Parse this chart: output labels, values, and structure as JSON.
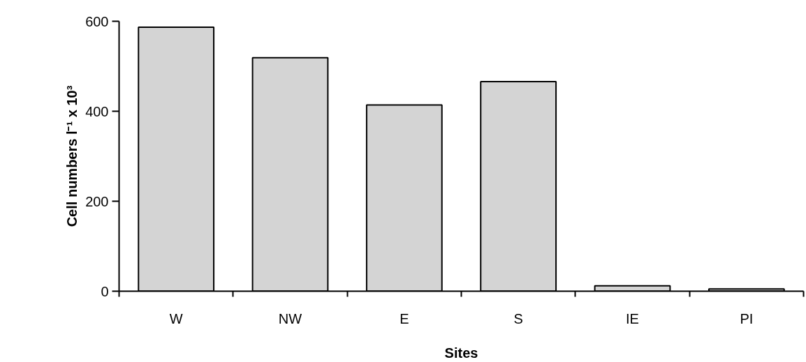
{
  "chart_data": {
    "type": "bar",
    "xlabel": "Sites",
    "ylabel": "Cell numbers l⁻¹ x 10³",
    "categories": [
      "W",
      "NW",
      "E",
      "S",
      "IE",
      "PI"
    ],
    "values": [
      587,
      519,
      414,
      466,
      12,
      5
    ],
    "color": "#d4d4d4",
    "ylim": [
      0,
      600
    ],
    "yticks": [
      0,
      200,
      400,
      600
    ],
    "grid": false
  }
}
